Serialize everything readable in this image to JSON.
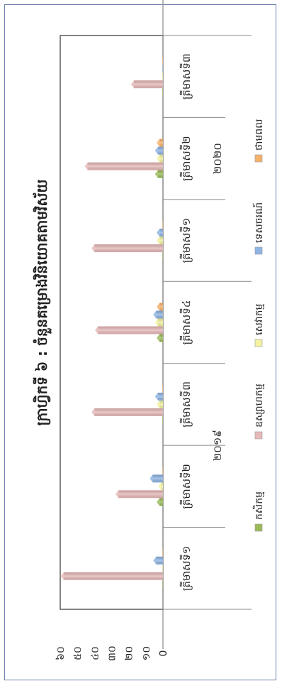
{
  "chart_data": {
    "type": "bar",
    "orientation": "vertical bars, figure rotated 90° counter-clockwise",
    "title": "ក្រាហ្វិកទី ៦ : ចំនួនគម្រោងវិនិយោគតាមវិស័យ",
    "year_groups": [
      {
        "label": "២០១៩",
        "categories": [
          "ត្រីមាសទី១",
          "ត្រីមាសទី២",
          "ត្រីមាសទី៣",
          "ត្រីមាសទី៤"
        ]
      },
      {
        "label": "២០២០",
        "categories": [
          "ត្រីមាសទី១",
          "ត្រីមាសទី២",
          "ត្រីមាសទី៣"
        ]
      }
    ],
    "categories": [
      "ត្រីមាសទី១",
      "ត្រីមាសទី២",
      "ត្រីមាសទី៣",
      "ត្រីមាសទី៤",
      "ត្រីមាសទី១",
      "ត្រីមាសទី២",
      "ត្រីមាសទី៣"
    ],
    "series": [
      {
        "name": "កសិកម្ម",
        "color": "#9bbb59",
        "values": [
          0,
          2,
          0,
          2,
          0,
          3,
          0
        ]
      },
      {
        "name": "ឧស្សាហកម្ម",
        "color": "#e6b9b8",
        "values": [
          58,
          26,
          40,
          38,
          40,
          44,
          17
        ]
      },
      {
        "name": "សេវាកម្ម",
        "color": "#f2f2a0",
        "values": [
          0,
          1,
          2,
          3,
          2,
          2,
          0
        ]
      },
      {
        "name": "ទេសចរណ៍",
        "color": "#8eb4e3",
        "values": [
          4,
          6,
          3,
          4,
          2,
          3,
          0
        ]
      },
      {
        "name": "ថាមពល",
        "color": "#f6b26b",
        "values": [
          0,
          0,
          0,
          2,
          0,
          2,
          0
        ]
      }
    ],
    "ylim": [
      0,
      60
    ],
    "yticks": [
      "0",
      "១០",
      "២០",
      "៣០",
      "៤០",
      "៥០",
      "៦០"
    ],
    "grid": false,
    "legend_position": "bottom"
  }
}
